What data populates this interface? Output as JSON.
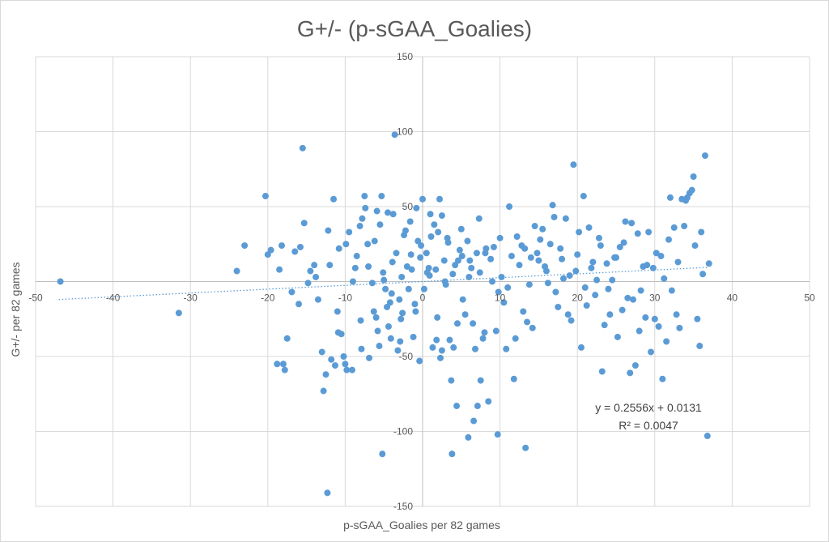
{
  "chart_data": {
    "type": "scatter",
    "title": "G+/- (p-sGAA_Goalies)",
    "xlabel": "p-sGAA_Goalies per 82 games",
    "ylabel": "G+/- per 82 games",
    "xlim": [
      -50,
      50
    ],
    "ylim": [
      -150,
      150
    ],
    "x_ticks": [
      -50,
      -40,
      -30,
      -20,
      -10,
      0,
      10,
      20,
      30,
      40,
      50
    ],
    "y_ticks": [
      -150,
      -100,
      -50,
      50,
      100,
      150
    ],
    "x_tick_labels": [
      "-50",
      "-40",
      "-30",
      "-20",
      "-10",
      "0",
      "10",
      "20",
      "30",
      "40",
      "50"
    ],
    "y_tick_labels": [
      "-150",
      "-100",
      "-50",
      "50",
      "100",
      "150"
    ],
    "grid": true,
    "legend": "none",
    "marker_color": "#5b9bd5",
    "trendline": {
      "type": "linear",
      "slope": 0.2556,
      "intercept": 0.0131,
      "x_range": [
        -47,
        37
      ],
      "color": "#5b9bd5",
      "style": "dotted",
      "equation_label": "y = 0.2556x + 0.0131",
      "r2_label": "R² = 0.0047"
    },
    "points": [
      [
        -46.8,
        0
      ],
      [
        -31.5,
        -21
      ],
      [
        -24,
        7
      ],
      [
        -23,
        24
      ],
      [
        -20.3,
        57
      ],
      [
        -20,
        18
      ],
      [
        -19.6,
        21
      ],
      [
        -18.8,
        -55
      ],
      [
        -18.5,
        8
      ],
      [
        -18.2,
        24
      ],
      [
        -18,
        -55
      ],
      [
        -17.8,
        -59
      ],
      [
        -17.5,
        -38
      ],
      [
        -16.5,
        20
      ],
      [
        -16,
        -15
      ],
      [
        -15.5,
        89
      ],
      [
        -15.3,
        39
      ],
      [
        -14.5,
        7
      ],
      [
        -14,
        11
      ],
      [
        -13.5,
        -12
      ],
      [
        -13,
        -47
      ],
      [
        -12.8,
        -73
      ],
      [
        -12,
        11
      ],
      [
        -11.5,
        55
      ],
      [
        -11,
        -20
      ],
      [
        -10.8,
        22
      ],
      [
        -10.5,
        -35
      ],
      [
        -10.2,
        -50
      ],
      [
        -10,
        -55
      ],
      [
        -9.8,
        -59
      ],
      [
        -9.5,
        33
      ],
      [
        -9,
        0
      ],
      [
        -8.5,
        17
      ],
      [
        -8,
        -26
      ],
      [
        -7.8,
        42
      ],
      [
        -7.5,
        57
      ],
      [
        -7,
        10
      ],
      [
        -6.5,
        -1
      ],
      [
        -6.3,
        -20
      ],
      [
        -6,
        -24
      ],
      [
        -5.8,
        -33
      ],
      [
        -5.5,
        38
      ],
      [
        -5.3,
        57
      ],
      [
        -5,
        1
      ],
      [
        -4.8,
        -5
      ],
      [
        -4.6,
        -17
      ],
      [
        -4.4,
        -30
      ],
      [
        -4.2,
        -14
      ],
      [
        -4,
        -8
      ],
      [
        -3.8,
        45
      ],
      [
        -3.6,
        98
      ],
      [
        -3.4,
        19
      ],
      [
        -3.2,
        -46
      ],
      [
        -3,
        -12
      ],
      [
        -2.8,
        -25
      ],
      [
        -2.6,
        -21
      ],
      [
        -2.4,
        31
      ],
      [
        -2.2,
        34
      ],
      [
        -2,
        10
      ],
      [
        -1.8,
        -5
      ],
      [
        -1.6,
        40
      ],
      [
        -1.4,
        8
      ],
      [
        -1.2,
        -37
      ],
      [
        -1,
        -15
      ],
      [
        -0.8,
        49
      ],
      [
        -0.6,
        27
      ],
      [
        -0.4,
        -53
      ],
      [
        -0.2,
        24
      ],
      [
        0,
        55
      ],
      [
        0.2,
        -5
      ],
      [
        0.5,
        19
      ],
      [
        0.8,
        9
      ],
      [
        1,
        45
      ],
      [
        1.3,
        -44
      ],
      [
        1.5,
        38
      ],
      [
        1.8,
        -39
      ],
      [
        2,
        33
      ],
      [
        2.2,
        55
      ],
      [
        2.5,
        -46
      ],
      [
        2.8,
        14
      ],
      [
        3,
        -2
      ],
      [
        3.2,
        29
      ],
      [
        3.5,
        -39
      ],
      [
        3.8,
        -115
      ],
      [
        4,
        -44
      ],
      [
        4.2,
        11
      ],
      [
        4.5,
        -28
      ],
      [
        4.8,
        21
      ],
      [
        5,
        35
      ],
      [
        5.2,
        -12
      ],
      [
        5.5,
        -22
      ],
      [
        5.8,
        27
      ],
      [
        6,
        3
      ],
      [
        6.3,
        9
      ],
      [
        6.5,
        -28
      ],
      [
        6.8,
        -45
      ],
      [
        7,
        19
      ],
      [
        7.3,
        42
      ],
      [
        7.5,
        -66
      ],
      [
        7.8,
        -38
      ],
      [
        8,
        -34
      ],
      [
        8.2,
        22
      ],
      [
        8.5,
        -80
      ],
      [
        8.8,
        15
      ],
      [
        9,
        0
      ],
      [
        9.2,
        23
      ],
      [
        9.5,
        -33
      ],
      [
        9.8,
        -7
      ],
      [
        10,
        29
      ],
      [
        10.2,
        3
      ],
      [
        10.5,
        -14
      ],
      [
        10.8,
        -45
      ],
      [
        11,
        -4
      ],
      [
        11.2,
        50
      ],
      [
        11.5,
        17
      ],
      [
        11.8,
        -65
      ],
      [
        12,
        -38
      ],
      [
        12.2,
        30
      ],
      [
        12.5,
        11
      ],
      [
        12.8,
        24
      ],
      [
        13,
        -20
      ],
      [
        13.2,
        22
      ],
      [
        13.5,
        -27
      ],
      [
        13.8,
        -2
      ],
      [
        14,
        16
      ],
      [
        14.2,
        -31
      ],
      [
        14.5,
        37
      ],
      [
        14.8,
        19
      ],
      [
        15,
        14
      ],
      [
        15.2,
        28
      ],
      [
        15.5,
        35
      ],
      [
        15.8,
        10
      ],
      [
        16,
        7
      ],
      [
        16.2,
        -1
      ],
      [
        16.5,
        25
      ],
      [
        16.8,
        51
      ],
      [
        17,
        43
      ],
      [
        17.2,
        -7
      ],
      [
        17.5,
        -17
      ],
      [
        17.8,
        22
      ],
      [
        18,
        15
      ],
      [
        18.2,
        2
      ],
      [
        18.5,
        42
      ],
      [
        18.8,
        -22
      ],
      [
        19,
        4
      ],
      [
        19.2,
        -26
      ],
      [
        19.5,
        78
      ],
      [
        19.8,
        7
      ],
      [
        20,
        18
      ],
      [
        20.2,
        33
      ],
      [
        20.5,
        -44
      ],
      [
        20.8,
        57
      ],
      [
        21,
        -4
      ],
      [
        21.2,
        -16
      ],
      [
        21.5,
        36
      ],
      [
        21.8,
        9
      ],
      [
        22,
        13
      ],
      [
        22.3,
        -9
      ],
      [
        22.5,
        1
      ],
      [
        22.8,
        29
      ],
      [
        23,
        24
      ],
      [
        23.2,
        -60
      ],
      [
        23.5,
        -29
      ],
      [
        23.8,
        12
      ],
      [
        24,
        -5
      ],
      [
        24.2,
        -22
      ],
      [
        24.5,
        1
      ],
      [
        24.8,
        16
      ],
      [
        25,
        16
      ],
      [
        25.2,
        -37
      ],
      [
        25.5,
        23
      ],
      [
        25.8,
        -19
      ],
      [
        26,
        26
      ],
      [
        26.2,
        40
      ],
      [
        26.5,
        -11
      ],
      [
        26.8,
        -61
      ],
      [
        27,
        39
      ],
      [
        27.2,
        -12
      ],
      [
        27.5,
        -56
      ],
      [
        27.8,
        32
      ],
      [
        28,
        -33
      ],
      [
        28.2,
        -6
      ],
      [
        28.5,
        10
      ],
      [
        28.8,
        -24
      ],
      [
        29,
        11
      ],
      [
        29.2,
        33
      ],
      [
        29.5,
        -47
      ],
      [
        29.8,
        9
      ],
      [
        30,
        -25
      ],
      [
        30.2,
        19
      ],
      [
        30.5,
        -30
      ],
      [
        30.8,
        17
      ],
      [
        31,
        -65
      ],
      [
        31.2,
        2
      ],
      [
        31.5,
        -40
      ],
      [
        31.8,
        28
      ],
      [
        32,
        56
      ],
      [
        32.2,
        -6
      ],
      [
        32.5,
        36
      ],
      [
        32.8,
        -22
      ],
      [
        33,
        13
      ],
      [
        33.2,
        -31
      ],
      [
        33.5,
        55
      ],
      [
        33.8,
        37
      ],
      [
        34,
        54
      ],
      [
        34.2,
        56
      ],
      [
        34.5,
        59
      ],
      [
        34.8,
        61
      ],
      [
        35,
        70
      ],
      [
        35.2,
        24
      ],
      [
        35.5,
        -25
      ],
      [
        35.8,
        -43
      ],
      [
        36,
        33
      ],
      [
        36.2,
        5
      ],
      [
        36.5,
        84
      ],
      [
        36.8,
        -103
      ],
      [
        37,
        12
      ],
      [
        2.5,
        44
      ],
      [
        1.1,
        30
      ],
      [
        3.3,
        26
      ],
      [
        5.1,
        17
      ],
      [
        6.1,
        14
      ],
      [
        7.4,
        6
      ],
      [
        8.1,
        19
      ],
      [
        -1.5,
        18
      ],
      [
        -2.7,
        3
      ],
      [
        -3.9,
        13
      ],
      [
        -5.1,
        6
      ],
      [
        -6.2,
        27
      ],
      [
        -7.1,
        25
      ],
      [
        -8.7,
        9
      ],
      [
        -9.9,
        25
      ],
      [
        -12.2,
        34
      ],
      [
        -13.8,
        3
      ],
      [
        -15.8,
        23
      ],
      [
        -0.3,
        16
      ],
      [
        0.6,
        6
      ],
      [
        0.9,
        4
      ],
      [
        1.7,
        8
      ],
      [
        2.9,
        0
      ],
      [
        3.9,
        5
      ],
      [
        4.6,
        14
      ],
      [
        -4.5,
        46
      ],
      [
        -5.9,
        47
      ],
      [
        -7.4,
        49
      ],
      [
        -8.1,
        37
      ],
      [
        -10.9,
        -34
      ],
      [
        -11.8,
        -52
      ],
      [
        -12.5,
        -62
      ],
      [
        -14.8,
        -1
      ],
      [
        -16.9,
        -7
      ],
      [
        -0.9,
        -20
      ],
      [
        -2.9,
        -40
      ],
      [
        -4.1,
        -38
      ],
      [
        -5.6,
        -43
      ],
      [
        -6.9,
        -51
      ],
      [
        -7.9,
        -45
      ],
      [
        -9.1,
        -59
      ],
      [
        -11.3,
        -56
      ],
      [
        1.9,
        -24
      ],
      [
        2.3,
        -51
      ],
      [
        3.7,
        -66
      ],
      [
        4.4,
        -83
      ],
      [
        5.9,
        -104
      ],
      [
        6.6,
        -93
      ],
      [
        7.1,
        -83
      ],
      [
        9.7,
        -102
      ],
      [
        13.3,
        -111
      ],
      [
        -12.3,
        -141
      ],
      [
        -5.2,
        -115
      ]
    ]
  }
}
